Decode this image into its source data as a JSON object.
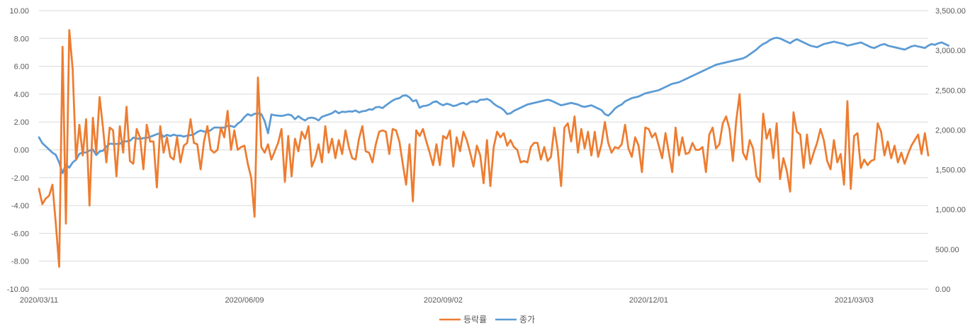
{
  "chart_data": {
    "type": "line",
    "title": "",
    "xlabel": "",
    "ylabel": "",
    "x_tick_labels": [
      "2020/03/11",
      "2020/06/09",
      "2020/09/02",
      "2020/12/01",
      "2021/03/03"
    ],
    "y_left": {
      "min": -10,
      "max": 10,
      "step": 2,
      "tick_labels": [
        "-10.00",
        "-8.00",
        "-6.00",
        "-4.00",
        "-2.00",
        "0.00",
        "2.00",
        "4.00",
        "6.00",
        "8.00",
        "10.00"
      ]
    },
    "y_right": {
      "min": 0,
      "max": 3500,
      "step": 500,
      "tick_labels": [
        "0.00",
        "500.00",
        "1,000.00",
        "1,500.00",
        "2,000.00",
        "2,500.00",
        "3,000.00",
        "3,500.00"
      ]
    },
    "grid": true,
    "legend_position": "bottom",
    "series": [
      {
        "name": "등락률",
        "axis": "left",
        "color": "#ED7D31",
        "values": [
          -2.8,
          -3.9,
          -3.5,
          -3.3,
          -2.5,
          -5.3,
          -8.4,
          7.4,
          -5.3,
          8.6,
          5.8,
          -0.7,
          1.8,
          -0.4,
          2.2,
          -4.0,
          2.3,
          -0.2,
          3.8,
          1.6,
          -0.9,
          1.6,
          1.4,
          -1.9,
          1.7,
          -0.2,
          3.1,
          -0.8,
          -1.0,
          1.5,
          0.9,
          -1.4,
          1.8,
          0.6,
          0.6,
          -2.7,
          1.7,
          -0.2,
          0.9,
          -0.5,
          -0.7,
          0.9,
          -0.9,
          0.3,
          0.5,
          2.2,
          0.5,
          0.4,
          -1.4,
          0.6,
          1.7,
          0.0,
          -0.2,
          0.0,
          1.6,
          0.9,
          2.8,
          0.0,
          1.4,
          0.0,
          0.2,
          0.3,
          -1.0,
          -2.0,
          -4.8,
          5.2,
          0.2,
          -0.2,
          0.4,
          -0.7,
          -0.1,
          0.5,
          1.5,
          -2.3,
          1.0,
          -1.9,
          0.8,
          -0.1,
          1.3,
          0.8,
          1.7,
          -1.2,
          -0.6,
          0.4,
          -0.9,
          1.7,
          -0.2,
          0.8,
          -0.6,
          0.7,
          -0.3,
          1.4,
          0.2,
          -0.6,
          -0.7,
          0.8,
          1.7,
          -0.1,
          -0.2,
          -0.9,
          0.4,
          1.3,
          1.4,
          1.3,
          -0.3,
          1.5,
          1.4,
          0.6,
          -1.0,
          -2.5,
          0.4,
          -3.7,
          1.4,
          1.0,
          1.5,
          0.6,
          -0.2,
          -1.1,
          0.4,
          -1.1,
          1.0,
          0.8,
          1.4,
          -1.2,
          0.9,
          -0.1,
          1.3,
          0.7,
          -0.2,
          -1.2,
          0.3,
          -0.4,
          -2.4,
          0.7,
          -2.6,
          0.2,
          1.3,
          0.9,
          1.2,
          0.3,
          0.7,
          0.2,
          0.0,
          -0.9,
          -0.8,
          -0.9,
          0.2,
          0.5,
          0.5,
          -0.7,
          0.2,
          -0.8,
          -0.5,
          1.6,
          0.0,
          -2.6,
          1.6,
          1.9,
          0.6,
          2.4,
          -0.2,
          1.5,
          0.1,
          1.3,
          -0.4,
          1.3,
          -0.5,
          0.4,
          2.0,
          0.5,
          -0.2,
          0.2,
          0.1,
          0.4,
          1.8,
          0.1,
          -0.5,
          0.9,
          0.3,
          -1.6,
          1.6,
          1.5,
          0.9,
          1.2,
          0.3,
          -0.6,
          1.2,
          -0.2,
          -1.6,
          1.6,
          -0.4,
          0.9,
          -0.3,
          -0.2,
          0.5,
          0.0,
          0.0,
          0.2,
          -1.6,
          1.1,
          1.6,
          0.1,
          0.4,
          1.9,
          2.4,
          1.5,
          -0.8,
          2.1,
          4.0,
          -0.2,
          -0.7,
          0.7,
          0.1,
          -1.9,
          -2.3,
          2.6,
          0.8,
          1.5,
          -0.6,
          1.9,
          -2.1,
          -0.6,
          -1.5,
          -3.0,
          2.7,
          1.3,
          1.1,
          -1.3,
          1.1,
          -1.0,
          -0.2,
          0.5,
          1.5,
          0.7,
          -0.8,
          -1.4,
          0.7,
          -0.9,
          -0.3,
          -2.5,
          3.5,
          -2.8,
          1.0,
          1.2,
          -1.3,
          -0.7,
          -1.1,
          -0.8,
          -0.7,
          1.9,
          1.3,
          -0.4,
          0.6,
          -0.6,
          0.3,
          -0.9,
          -0.2,
          -1.0,
          -0.3,
          0.3,
          0.7,
          1.1,
          -0.3,
          1.2,
          -0.4
        ]
      },
      {
        "name": "종가",
        "axis": "right",
        "color": "#5B9BD5",
        "values": [
          1908,
          1834,
          1795,
          1754,
          1714,
          1686,
          1591,
          1457,
          1566,
          1526,
          1591,
          1625,
          1700,
          1717,
          1718,
          1742,
          1755,
          1685,
          1730,
          1739,
          1791,
          1828,
          1824,
          1825,
          1826,
          1856,
          1857,
          1864,
          1904,
          1895,
          1887,
          1898,
          1901,
          1914,
          1930,
          1947,
          1960,
          1914,
          1939,
          1924,
          1941,
          1928,
          1930,
          1916,
          1929,
          1935,
          1944,
          1975,
          1993,
          1980,
          1976,
          1998,
          2030,
          2030,
          2029,
          2029,
          2049,
          2050,
          2036,
          2079,
          2110,
          2163,
          2200,
          2180,
          2203,
          2208,
          2200,
          2113,
          1958,
          2195,
          2185,
          2180,
          2176,
          2185,
          2195,
          2183,
          2135,
          2174,
          2142,
          2120,
          2150,
          2155,
          2145,
          2120,
          2165,
          2180,
          2195,
          2210,
          2240,
          2210,
          2230,
          2225,
          2235,
          2230,
          2245,
          2220,
          2235,
          2240,
          2260,
          2255,
          2285,
          2290,
          2275,
          2310,
          2340,
          2370,
          2390,
          2400,
          2430,
          2435,
          2410,
          2360,
          2375,
          2280,
          2300,
          2305,
          2320,
          2350,
          2360,
          2330,
          2310,
          2330,
          2320,
          2300,
          2310,
          2330,
          2340,
          2320,
          2350,
          2360,
          2350,
          2380,
          2380,
          2390,
          2370,
          2330,
          2300,
          2280,
          2250,
          2200,
          2210,
          2240,
          2260,
          2280,
          2300,
          2320,
          2330,
          2340,
          2350,
          2360,
          2370,
          2380,
          2370,
          2350,
          2330,
          2310,
          2320,
          2330,
          2340,
          2330,
          2320,
          2300,
          2290,
          2300,
          2310,
          2290,
          2270,
          2250,
          2200,
          2180,
          2220,
          2270,
          2300,
          2320,
          2360,
          2380,
          2400,
          2410,
          2420,
          2440,
          2460,
          2470,
          2480,
          2490,
          2500,
          2520,
          2540,
          2560,
          2580,
          2590,
          2600,
          2620,
          2640,
          2660,
          2680,
          2700,
          2720,
          2740,
          2760,
          2780,
          2800,
          2820,
          2830,
          2840,
          2850,
          2860,
          2870,
          2880,
          2890,
          2900,
          2920,
          2950,
          2980,
          3010,
          3050,
          3080,
          3100,
          3130,
          3150,
          3160,
          3150,
          3130,
          3110,
          3090,
          3120,
          3140,
          3120,
          3100,
          3080,
          3060,
          3050,
          3040,
          3060,
          3080,
          3090,
          3100,
          3110,
          3100,
          3090,
          3080,
          3060,
          3070,
          3080,
          3090,
          3100,
          3080,
          3060,
          3040,
          3030,
          3050,
          3070,
          3080,
          3060,
          3050,
          3040,
          3030,
          3020,
          3010,
          3030,
          3050,
          3060,
          3050,
          3040,
          3030,
          3060,
          3080,
          3070,
          3090,
          3100,
          3080,
          3060
        ]
      }
    ]
  }
}
